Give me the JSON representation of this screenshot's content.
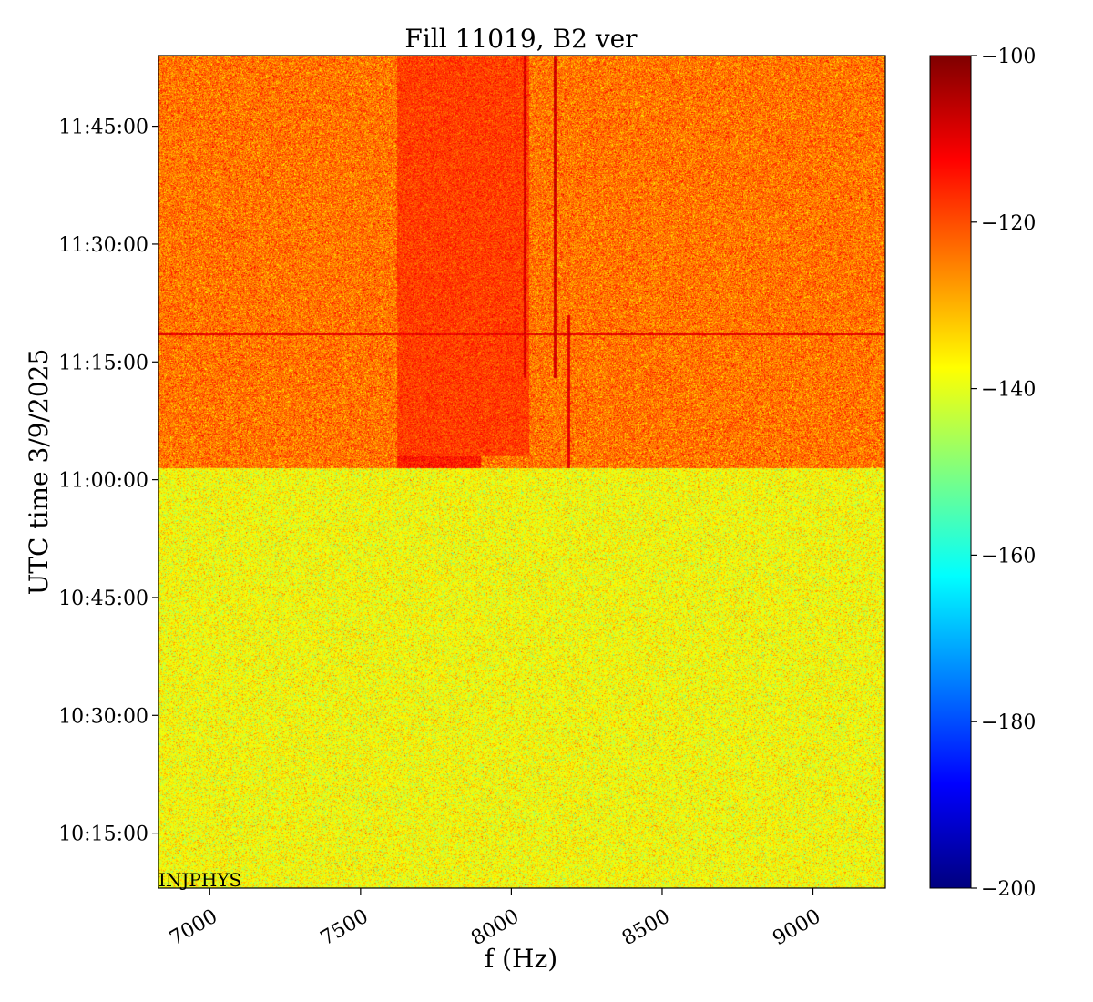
{
  "chart_data": {
    "type": "heatmap",
    "title": "Fill 11019, B2 ver",
    "xlabel": "f (Hz)",
    "ylabel": "UTC time 3/9/2025",
    "xlim": [
      6830,
      9240
    ],
    "x_ticks": [
      {
        "value": 7000,
        "label": "7000"
      },
      {
        "value": 7500,
        "label": "7500"
      },
      {
        "value": 8000,
        "label": "8000"
      },
      {
        "value": 8500,
        "label": "8500"
      },
      {
        "value": 9000,
        "label": "9000"
      }
    ],
    "ylim": [
      "10:08:00",
      "11:54:00"
    ],
    "y_ticks": [
      {
        "value": "10:15:00",
        "label": "10:15:00"
      },
      {
        "value": "10:30:00",
        "label": "10:30:00"
      },
      {
        "value": "10:45:00",
        "label": "10:45:00"
      },
      {
        "value": "11:00:00",
        "label": "11:00:00"
      },
      {
        "value": "11:15:00",
        "label": "11:15:00"
      },
      {
        "value": "11:30:00",
        "label": "11:30:00"
      },
      {
        "value": "11:45:00",
        "label": "11:45:00"
      }
    ],
    "colorbar": {
      "colormap": "jet",
      "range": [
        -200,
        -100
      ],
      "ticks": [
        {
          "value": -100,
          "label": "−100"
        },
        {
          "value": -120,
          "label": "−120"
        },
        {
          "value": -140,
          "label": "−140"
        },
        {
          "value": -160,
          "label": "−160"
        },
        {
          "value": -180,
          "label": "−180"
        },
        {
          "value": -200,
          "label": "−200"
        }
      ]
    },
    "annotation": "INJPHYS",
    "regions": [
      {
        "time_range": [
          "10:08:00",
          "11:01:30"
        ],
        "typical_level_dB": -138,
        "spread_dB": 5
      },
      {
        "time_range": [
          "11:01:30",
          "11:53:50"
        ],
        "typical_level_dB": -124,
        "spread_dB": 5
      },
      {
        "time_range": [
          "11:53:50",
          "11:54:00"
        ],
        "typical_level_dB": -137,
        "spread_dB": 4
      }
    ],
    "features": [
      {
        "kind": "vertical_line",
        "freq_hz": 8045,
        "time_range": [
          "11:13:00",
          "11:53:50"
        ],
        "level_dB": -106
      },
      {
        "kind": "vertical_line",
        "freq_hz": 8145,
        "time_range": [
          "11:13:00",
          "11:53:50"
        ],
        "level_dB": -108
      },
      {
        "kind": "vertical_line",
        "freq_hz": 8190,
        "time_range": [
          "11:01:30",
          "11:21:00"
        ],
        "level_dB": -110
      },
      {
        "kind": "horizontal_line",
        "time": "11:18:30",
        "freq_range": [
          6830,
          9240
        ],
        "level_dB": -110
      },
      {
        "kind": "band",
        "freq_range": [
          7620,
          8060
        ],
        "time_range": [
          "11:03:00",
          "11:53:50"
        ],
        "level_dB": -112
      },
      {
        "kind": "band",
        "freq_range": [
          7620,
          7900
        ],
        "time_range": [
          "11:01:30",
          "11:03:00"
        ],
        "level_dB": -104
      }
    ]
  }
}
